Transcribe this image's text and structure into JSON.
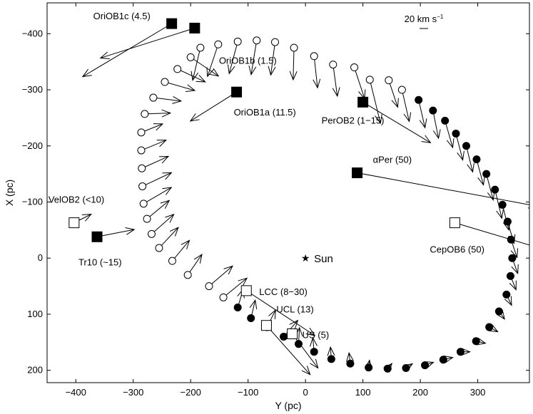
{
  "chart_data": {
    "type": "scatter",
    "xlabel": "Y (pc)",
    "ylabel": "X (pc)",
    "xlim": [
      -450,
      390
    ],
    "ylim": [
      -455,
      222
    ],
    "y_axis_inverted": true,
    "xticks": [
      {
        "v": -400,
        "label": "−400"
      },
      {
        "v": -300,
        "label": "−300"
      },
      {
        "v": -200,
        "label": "−200"
      },
      {
        "v": -100,
        "label": "−100"
      },
      {
        "v": 0,
        "label": "0"
      },
      {
        "v": 100,
        "label": "100"
      },
      {
        "v": 200,
        "label": "200"
      },
      {
        "v": 300,
        "label": "300"
      }
    ],
    "yticks": [
      {
        "v": -400,
        "label": "−400"
      },
      {
        "v": -300,
        "label": "−300"
      },
      {
        "v": -200,
        "label": "−200"
      },
      {
        "v": -100,
        "label": "−100"
      },
      {
        "v": 0,
        "label": "0"
      },
      {
        "v": 100,
        "label": "100"
      },
      {
        "v": 200,
        "label": "200"
      }
    ],
    "scale_bar": {
      "label": "20 km s",
      "superscript": "−1",
      "kms": 20
    },
    "sun": {
      "x": 0,
      "y": 0,
      "label": "Sun"
    },
    "associations": [
      {
        "name": "OriOB1c (4.5)",
        "x": -233,
        "y": -418,
        "filled": true,
        "vx": -208,
        "vy": 124
      },
      {
        "name": "OriOB1b (1.5)",
        "x": -193,
        "y": -410,
        "filled": true,
        "vx": -220,
        "vy": 70
      },
      {
        "name": "OriOB1a (11.5)",
        "x": -120,
        "y": -296,
        "filled": true,
        "vx": -108,
        "vy": 68
      },
      {
        "name": "PerOB2 (1−15)",
        "x": 100,
        "y": -278,
        "filled": true,
        "vx": 158,
        "vy": 95
      },
      {
        "name": "αPer (50)",
        "x": 90,
        "y": -152,
        "filled": true,
        "vx": 420,
        "vy": 78
      },
      {
        "name": "CepOB6 (50)",
        "x": 260,
        "y": -63,
        "filled": false,
        "vx": 462,
        "vy": 138
      },
      {
        "name": "VelOB2 (<10)",
        "x": -403,
        "y": -63,
        "filled": false,
        "vx": 40,
        "vy": -20
      },
      {
        "name": "Tr10 (~15)",
        "x": -363,
        "y": -38,
        "filled": true,
        "vx": 87,
        "vy": -17
      },
      {
        "name": "LCC (8−30)",
        "x": -103,
        "y": 58,
        "filled": false,
        "vx": 160,
        "vy": 105
      },
      {
        "name": "UCL (13)",
        "x": -68,
        "y": 120,
        "filled": false,
        "vx": 102,
        "vy": 115
      },
      {
        "name": "US (5)",
        "x": -23,
        "y": 135,
        "filled": false,
        "vx": 60,
        "vy": 80
      }
    ],
    "ring": [
      {
        "x": -183,
        "y": -375,
        "filled": false,
        "vx": -18,
        "vy": 76
      },
      {
        "x": -152,
        "y": -381,
        "filled": false,
        "vx": -25,
        "vy": 75
      },
      {
        "x": -118,
        "y": -386,
        "filled": false,
        "vx": -20,
        "vy": 75
      },
      {
        "x": -85,
        "y": -388,
        "filled": false,
        "vx": -13,
        "vy": 80
      },
      {
        "x": -53,
        "y": -385,
        "filled": false,
        "vx": -10,
        "vy": 77
      },
      {
        "x": -20,
        "y": -375,
        "filled": false,
        "vx": -2,
        "vy": 75
      },
      {
        "x": 15,
        "y": -360,
        "filled": false,
        "vx": 8,
        "vy": 74
      },
      {
        "x": 48,
        "y": -345,
        "filled": false,
        "vx": 10,
        "vy": 74
      },
      {
        "x": 85,
        "y": -340,
        "filled": false,
        "vx": 24,
        "vy": 73
      },
      {
        "x": 112,
        "y": -318,
        "filled": false,
        "vx": 25,
        "vy": 102
      },
      {
        "x": 145,
        "y": -317,
        "filled": false,
        "vx": 21,
        "vy": 63
      },
      {
        "x": 168,
        "y": -300,
        "filled": false,
        "vx": 17,
        "vy": 74
      },
      {
        "x": 197,
        "y": -282,
        "filled": true,
        "vx": 15,
        "vy": 65
      },
      {
        "x": 222,
        "y": -263,
        "filled": true,
        "vx": 13,
        "vy": 65
      },
      {
        "x": 243,
        "y": -245,
        "filled": true,
        "vx": 18,
        "vy": 63
      },
      {
        "x": 262,
        "y": -222,
        "filled": true,
        "vx": 16,
        "vy": 62
      },
      {
        "x": 280,
        "y": -200,
        "filled": true,
        "vx": 15,
        "vy": 61
      },
      {
        "x": 298,
        "y": -176,
        "filled": true,
        "vx": 16,
        "vy": 60
      },
      {
        "x": 315,
        "y": -150,
        "filled": true,
        "vx": 16,
        "vy": 61
      },
      {
        "x": 330,
        "y": -122,
        "filled": true,
        "vx": 16,
        "vy": 67
      },
      {
        "x": 343,
        "y": -95,
        "filled": true,
        "vx": 15,
        "vy": 59
      },
      {
        "x": 352,
        "y": -65,
        "filled": true,
        "vx": 15,
        "vy": 51
      },
      {
        "x": 358,
        "y": -33,
        "filled": true,
        "vx": 14,
        "vy": 42
      },
      {
        "x": 360,
        "y": 0,
        "filled": true,
        "vx": 13,
        "vy": 36
      },
      {
        "x": 357,
        "y": 32,
        "filled": true,
        "vx": 13,
        "vy": 32
      },
      {
        "x": 350,
        "y": 65,
        "filled": true,
        "vx": 12,
        "vy": 25
      },
      {
        "x": 337,
        "y": 95,
        "filled": true,
        "vx": 13,
        "vy": 18
      },
      {
        "x": 320,
        "y": 123,
        "filled": true,
        "vx": 20,
        "vy": 11
      },
      {
        "x": 297,
        "y": 148,
        "filled": true,
        "vx": 22,
        "vy": 5
      },
      {
        "x": 270,
        "y": 167,
        "filled": true,
        "vx": 22,
        "vy": 0
      },
      {
        "x": 240,
        "y": 181,
        "filled": true,
        "vx": 22,
        "vy": -5
      },
      {
        "x": 208,
        "y": 191,
        "filled": true,
        "vx": 20,
        "vy": -7
      },
      {
        "x": 175,
        "y": 196,
        "filled": true,
        "vx": 15,
        "vy": -10
      },
      {
        "x": 143,
        "y": 197,
        "filled": true,
        "vx": 10,
        "vy": -12
      },
      {
        "x": 110,
        "y": 195,
        "filled": true,
        "vx": 2,
        "vy": -17
      },
      {
        "x": 78,
        "y": 188,
        "filled": true,
        "vx": -3,
        "vy": -25
      },
      {
        "x": 45,
        "y": 180,
        "filled": true,
        "vx": -2,
        "vy": -28
      },
      {
        "x": 15,
        "y": 167,
        "filled": true,
        "vx": -3,
        "vy": -33
      },
      {
        "x": -12,
        "y": 153,
        "filled": true,
        "vx": 2,
        "vy": -38
      },
      {
        "x": -38,
        "y": 140,
        "filled": true,
        "vx": 33,
        "vy": -38
      },
      {
        "x": -67,
        "y": 123,
        "filled": true,
        "vx": 20,
        "vy": -40
      },
      {
        "x": -95,
        "y": 107,
        "filled": true,
        "vx": 10,
        "vy": -42
      },
      {
        "x": -118,
        "y": 88,
        "filled": true,
        "vx": 13,
        "vy": -43
      },
      {
        "x": -143,
        "y": 70,
        "filled": false,
        "vx": 55,
        "vy": -45
      },
      {
        "x": -168,
        "y": 50,
        "filled": false,
        "vx": 55,
        "vy": -47
      },
      {
        "x": -205,
        "y": 30,
        "filled": false,
        "vx": 33,
        "vy": -48
      },
      {
        "x": -232,
        "y": 5,
        "filled": false,
        "vx": 40,
        "vy": -48
      },
      {
        "x": -255,
        "y": -18,
        "filled": false,
        "vx": 45,
        "vy": -48
      },
      {
        "x": -268,
        "y": -43,
        "filled": false,
        "vx": 52,
        "vy": -46
      },
      {
        "x": -276,
        "y": -70,
        "filled": false,
        "vx": 52,
        "vy": -43
      },
      {
        "x": -282,
        "y": -97,
        "filled": false,
        "vx": 65,
        "vy": -38
      },
      {
        "x": -284,
        "y": -128,
        "filled": false,
        "vx": 68,
        "vy": -32
      },
      {
        "x": -285,
        "y": -160,
        "filled": false,
        "vx": 62,
        "vy": -28
      },
      {
        "x": -286,
        "y": -192,
        "filled": false,
        "vx": 58,
        "vy": -24
      },
      {
        "x": -286,
        "y": -224,
        "filled": false,
        "vx": 50,
        "vy": -20
      },
      {
        "x": -280,
        "y": -257,
        "filled": false,
        "vx": 60,
        "vy": -2
      },
      {
        "x": -265,
        "y": -286,
        "filled": false,
        "vx": 65,
        "vy": 8
      },
      {
        "x": -245,
        "y": -314,
        "filled": false,
        "vx": 70,
        "vy": 20
      },
      {
        "x": -223,
        "y": -337,
        "filled": false,
        "vx": 65,
        "vy": 30
      },
      {
        "x": -200,
        "y": -358,
        "filled": false,
        "vx": 65,
        "vy": 44
      }
    ]
  }
}
